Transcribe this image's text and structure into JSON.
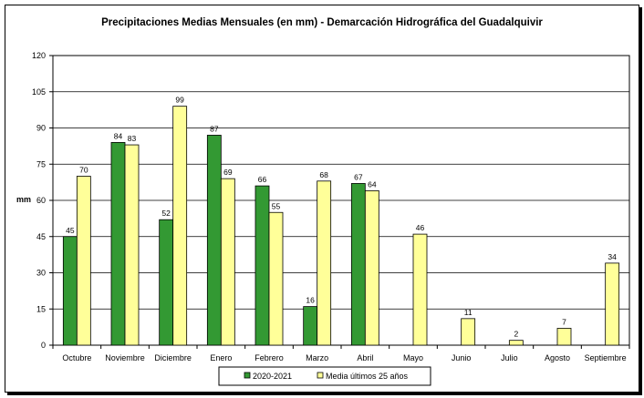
{
  "chart_data": {
    "type": "bar",
    "title": "Precipitaciones Medias Mensuales (en mm) - Demarcación Hidrográfica del Guadalquivir",
    "xlabel": "",
    "ylabel": "mm",
    "ylim": [
      0,
      120
    ],
    "yticks": [
      0,
      15,
      30,
      45,
      60,
      75,
      90,
      105,
      120
    ],
    "grid": true,
    "legend_position": "bottom",
    "categories": [
      "Octubre",
      "Noviembre",
      "Diciembre",
      "Enero",
      "Febrero",
      "Marzo",
      "Abril",
      "Mayo",
      "Junio",
      "Julio",
      "Agosto",
      "Septiembre"
    ],
    "series": [
      {
        "name": "2020-2021",
        "color": "#339933",
        "values": [
          45,
          84,
          52,
          87,
          66,
          16,
          67,
          null,
          null,
          null,
          null,
          null
        ]
      },
      {
        "name": "Media últimos 25 años",
        "color": "#ffff99",
        "values": [
          70,
          83,
          99,
          69,
          55,
          68,
          64,
          46,
          11,
          2,
          7,
          34
        ]
      }
    ]
  }
}
